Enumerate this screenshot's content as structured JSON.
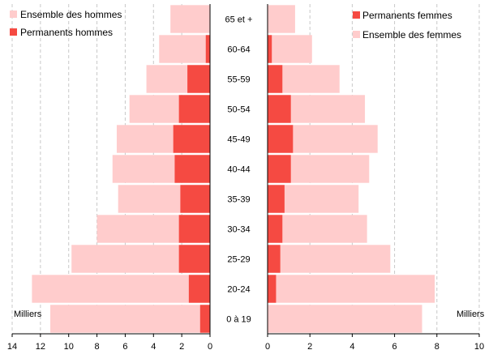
{
  "chart_data": {
    "type": "bar",
    "subtype": "population-pyramid",
    "categories": [
      "0 à 19",
      "20-24",
      "25-29",
      "30-34",
      "35-39",
      "40-44",
      "45-49",
      "50-54",
      "55-59",
      "60-64",
      "65 et +"
    ],
    "unit": "Milliers",
    "grid": "dashed vertical",
    "left_panel": {
      "xlim": [
        14,
        0
      ],
      "ticks": [
        "14",
        "12",
        "10",
        "8",
        "6",
        "4",
        "2",
        "0"
      ],
      "legend_position": "top-left",
      "series": [
        {
          "name": "Ensemble des hommes",
          "color": "#ffcccc",
          "values": [
            11.3,
            12.6,
            9.8,
            8.0,
            6.5,
            6.9,
            6.6,
            5.7,
            4.5,
            3.6,
            2.8
          ]
        },
        {
          "name": "Permanents hommes",
          "color": "#f54a42",
          "values": [
            0.7,
            1.5,
            2.2,
            2.2,
            2.1,
            2.5,
            2.6,
            2.2,
            1.6,
            0.3,
            0.0
          ]
        }
      ]
    },
    "right_panel": {
      "xlim": [
        0,
        10
      ],
      "ticks": [
        "0",
        "2",
        "4",
        "6",
        "8",
        "10"
      ],
      "legend_position": "top-right",
      "series": [
        {
          "name": "Permanents femmes",
          "color": "#f54a42",
          "values": [
            0.0,
            0.4,
            0.6,
            0.7,
            0.8,
            1.1,
            1.2,
            1.1,
            0.7,
            0.2,
            0.0
          ]
        },
        {
          "name": "Ensemble des femmes",
          "color": "#ffcccc",
          "values": [
            7.3,
            7.9,
            5.8,
            4.7,
            4.3,
            4.8,
            5.2,
            4.6,
            3.4,
            2.1,
            1.3
          ]
        }
      ]
    }
  }
}
